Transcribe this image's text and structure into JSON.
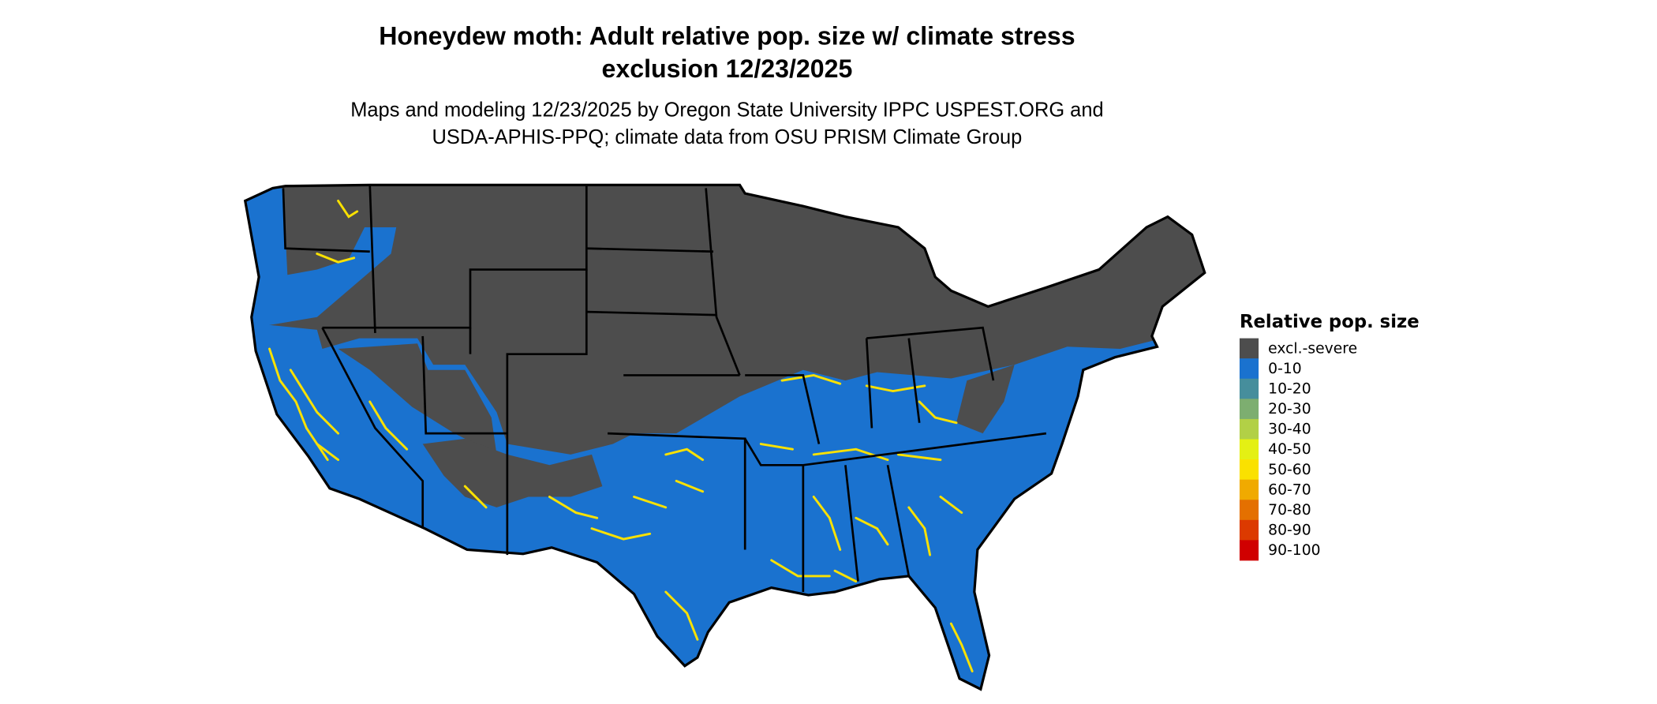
{
  "title": {
    "line1": "Honeydew moth: Adult relative pop. size w/ climate stress",
    "line2": "exclusion 12/23/2025"
  },
  "subtitle": {
    "line1": "Maps and modeling 12/23/2025 by Oregon State University IPPC USPEST.ORG and",
    "line2": "USDA-APHIS-PPQ; climate data from OSU PRISM Climate Group"
  },
  "legend": {
    "title": "Relative pop. size",
    "items": [
      {
        "label": "excl.-severe",
        "color": "#4d4d4d"
      },
      {
        "label": "0-10",
        "color": "#1a72cf"
      },
      {
        "label": "10-20",
        "color": "#468e9c"
      },
      {
        "label": "20-30",
        "color": "#7dae70"
      },
      {
        "label": "30-40",
        "color": "#b2d046"
      },
      {
        "label": "40-50",
        "color": "#e4f014"
      },
      {
        "label": "50-60",
        "color": "#fae100"
      },
      {
        "label": "60-70",
        "color": "#f0aa00"
      },
      {
        "label": "70-80",
        "color": "#e47000"
      },
      {
        "label": "80-90",
        "color": "#dc3a00"
      },
      {
        "label": "90-100",
        "color": "#d00000"
      }
    ]
  },
  "map": {
    "region": "Contiguous United States",
    "border_color": "#000000",
    "dominant_classes": [
      "excl.-severe",
      "0-10",
      "40-50",
      "50-60"
    ]
  }
}
